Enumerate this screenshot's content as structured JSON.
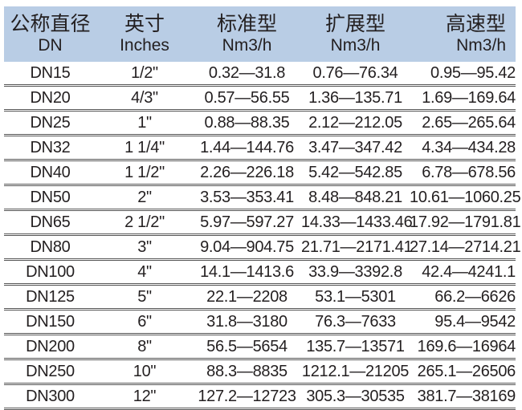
{
  "header": {
    "columns": [
      {
        "zh": "公称直径",
        "en": "DN"
      },
      {
        "zh": "英寸",
        "en": "Inches"
      },
      {
        "zh": "标准型",
        "en": "Nm3/h"
      },
      {
        "zh": "扩展型",
        "en": "Nm3/h"
      },
      {
        "zh": "高速型",
        "en": "Nm3/h"
      }
    ]
  },
  "rows": [
    [
      "DN15",
      "1/2\"",
      "0.32—31.8",
      "0.76—76.34",
      "0.95—95.42"
    ],
    [
      "DN20",
      "4/3\"",
      "0.57—56.55",
      "1.36—135.71",
      "1.69—169.64"
    ],
    [
      "DN25",
      "1\"",
      "0.88—88.35",
      "2.12—212.05",
      "2.65—265.64"
    ],
    [
      "DN32",
      "1 1/4\"",
      "1.44—144.76",
      "3.47—347.42",
      "4.34—434.28"
    ],
    [
      "DN40",
      "1 1/2\"",
      "2.26—226.18",
      "5.42—542.85",
      "6.78—678.56"
    ],
    [
      "DN50",
      "2\"",
      "3.53—353.41",
      "8.48—848.21",
      "10.61—1060.25"
    ],
    [
      "DN65",
      "2 1/2\"",
      "5.97—597.27",
      "14.33—1433.46",
      "17.92—1791.81"
    ],
    [
      "DN80",
      "3\"",
      "9.04—904.75",
      "21.71—2171.41",
      "27.14—2714.21"
    ],
    [
      "DN100",
      "4\"",
      "14.1—1413.6",
      "33.9—3392.8",
      "42.4—4241.1"
    ],
    [
      "DN125",
      "5\"",
      "22.1—2208",
      "53.1—5301",
      "66.2—6626"
    ],
    [
      "DN150",
      "6\"",
      "31.8—3180",
      "76.3—7633",
      "95.4—9542"
    ],
    [
      "DN200",
      "8\"",
      "56.5—5654",
      "135.7—13571",
      "169.6—16964"
    ],
    [
      "DN250",
      "10\"",
      "88.3—8835",
      "1212.1—21205",
      "265.1—26506"
    ],
    [
      "DN300",
      "12\"",
      "127.2—12723",
      "305.3—30535",
      "381.7—38169"
    ]
  ]
}
